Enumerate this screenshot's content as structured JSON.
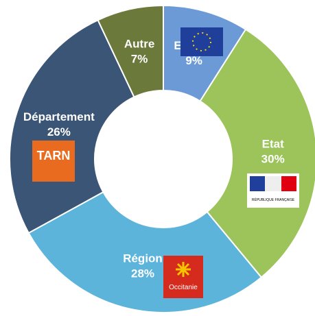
{
  "chart_data": {
    "type": "donut",
    "categories": [
      "Europe",
      "Etat",
      "Région",
      "Département",
      "Autre"
    ],
    "values": [
      9,
      30,
      28,
      26,
      7
    ],
    "value_labels": [
      "9%",
      "30%",
      "28%",
      "26%",
      "7%"
    ],
    "colors": [
      "#6c9ad6",
      "#9cc45b",
      "#5cb4db",
      "#3b5577",
      "#6b7a3b"
    ],
    "annotations": [
      "TARN",
      "Occitanie",
      "RÉPUBLIQUE FRANÇAISE"
    ]
  }
}
